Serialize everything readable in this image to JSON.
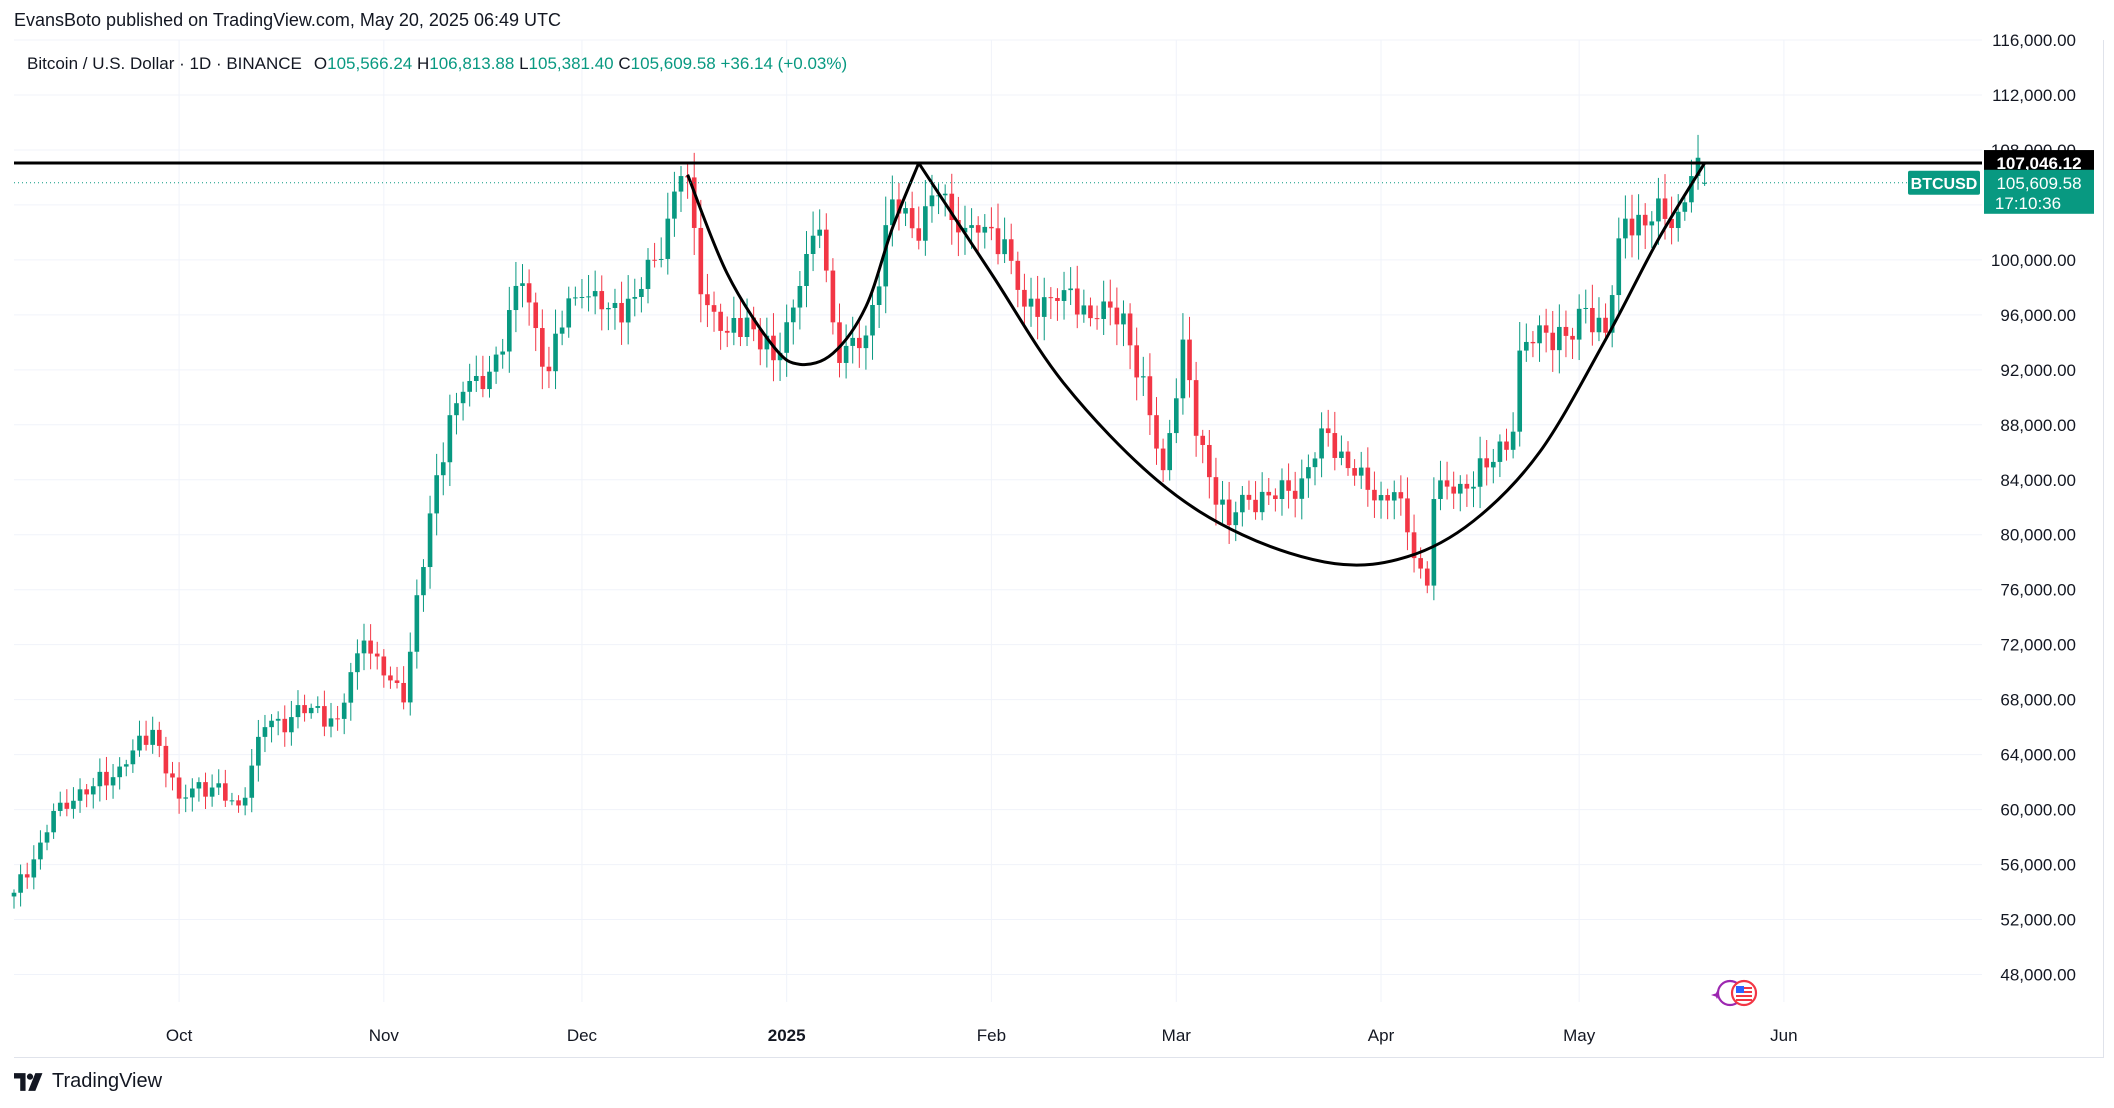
{
  "header": {
    "published_text": "EvansBoto published on TradingView.com, May 20, 2025 06:49 UTC"
  },
  "legend": {
    "symbol": "Bitcoin / U.S. Dollar · 1D · BINANCE",
    "open_label": "O",
    "open": "105,566.24",
    "high_label": "H",
    "high": "106,813.88",
    "low_label": "L",
    "low": "105,381.40",
    "close_label": "C",
    "close": "105,609.58",
    "change": "+36.14 (+0.03%)"
  },
  "footer": {
    "brand": "TradingView"
  },
  "colors": {
    "up": "#089981",
    "down": "#f23645",
    "pattern_line": "#000000",
    "level_line": "#000000",
    "grid": "#f0f3fa",
    "axis_text": "#131722"
  },
  "chart_data": {
    "type": "candlestick",
    "symbol": "BTCUSD",
    "interval": "1D",
    "y_axis": {
      "min": 46000,
      "max": 116000,
      "ticks": [
        48000,
        52000,
        56000,
        60000,
        64000,
        68000,
        72000,
        76000,
        80000,
        84000,
        88000,
        92000,
        96000,
        100000,
        104000,
        108000,
        112000,
        116000
      ],
      "tick_labels": [
        "48,000.00",
        "52,000.00",
        "56,000.00",
        "60,000.00",
        "64,000.00",
        "68,000.00",
        "72,000.00",
        "76,000.00",
        "80,000.00",
        "84,000.00",
        "88,000.00",
        "92,000.00",
        "96,000.00",
        "100,000.00",
        "104,000.00",
        "108,000.00",
        "112,000.00",
        "116,000.00"
      ],
      "side": "right"
    },
    "x_axis": {
      "start_date": "2024-09-06",
      "end_date": "2025-07-01",
      "ticks": [
        {
          "date": "2024-10-01",
          "label": "Oct",
          "bold": false
        },
        {
          "date": "2024-11-01",
          "label": "Nov",
          "bold": false
        },
        {
          "date": "2024-12-01",
          "label": "Dec",
          "bold": false
        },
        {
          "date": "2025-01-01",
          "label": "2025",
          "bold": true
        },
        {
          "date": "2025-02-01",
          "label": "Feb",
          "bold": false
        },
        {
          "date": "2025-03-01",
          "label": "Mar",
          "bold": false
        },
        {
          "date": "2025-04-01",
          "label": "Apr",
          "bold": false
        },
        {
          "date": "2025-05-01",
          "label": "May",
          "bold": false
        },
        {
          "date": "2025-06-01",
          "label": "Jun",
          "bold": false
        }
      ]
    },
    "last_date": "2025-05-20",
    "close_anchors": [
      [
        "2024-09-06",
        53950
      ],
      [
        "2024-09-10",
        57600
      ],
      [
        "2024-09-13",
        60500
      ],
      [
        "2024-09-18",
        61700
      ],
      [
        "2024-09-23",
        63300
      ],
      [
        "2024-09-27",
        65800
      ],
      [
        "2024-10-01",
        60800
      ],
      [
        "2024-10-04",
        62000
      ],
      [
        "2024-10-10",
        60300
      ],
      [
        "2024-10-14",
        66000
      ],
      [
        "2024-10-21",
        67400
      ],
      [
        "2024-10-25",
        66600
      ],
      [
        "2024-10-29",
        72300
      ],
      [
        "2024-11-02",
        69400
      ],
      [
        "2024-11-04",
        67800
      ],
      [
        "2024-11-06",
        75600
      ],
      [
        "2024-11-11",
        88700
      ],
      [
        "2024-11-13",
        90400
      ],
      [
        "2024-11-16",
        90600
      ],
      [
        "2024-11-22",
        98300
      ],
      [
        "2024-11-26",
        91900
      ],
      [
        "2024-11-29",
        97200
      ],
      [
        "2024-12-01",
        97300
      ],
      [
        "2024-12-05",
        96500
      ],
      [
        "2024-12-09",
        97300
      ],
      [
        "2024-12-12",
        100000
      ],
      [
        "2024-12-16",
        106100
      ],
      [
        "2024-12-17",
        106000
      ],
      [
        "2024-12-19",
        97500
      ],
      [
        "2024-12-23",
        94700
      ],
      [
        "2024-12-26",
        95800
      ],
      [
        "2024-12-30",
        92700
      ],
      [
        "2025-01-03",
        98100
      ],
      [
        "2025-01-06",
        102200
      ],
      [
        "2025-01-09",
        92500
      ],
      [
        "2025-01-13",
        94500
      ],
      [
        "2025-01-17",
        104400
      ],
      [
        "2025-01-20",
        102300
      ],
      [
        "2025-01-24",
        104700
      ],
      [
        "2025-01-27",
        102000
      ],
      [
        "2025-01-31",
        102400
      ],
      [
        "2025-02-03",
        101500
      ],
      [
        "2025-02-06",
        96600
      ],
      [
        "2025-02-12",
        97800
      ],
      [
        "2025-02-17",
        95700
      ],
      [
        "2025-02-21",
        96100
      ],
      [
        "2025-02-25",
        88700
      ],
      [
        "2025-02-27",
        84700
      ],
      [
        "2025-03-02",
        94200
      ],
      [
        "2025-03-04",
        87200
      ],
      [
        "2025-03-09",
        80700
      ],
      [
        "2025-03-11",
        82900
      ],
      [
        "2025-03-16",
        82600
      ],
      [
        "2025-03-20",
        84100
      ],
      [
        "2025-03-24",
        87400
      ],
      [
        "2025-03-28",
        84300
      ],
      [
        "2025-03-31",
        82500
      ],
      [
        "2025-04-03",
        83100
      ],
      [
        "2025-04-06",
        78300
      ],
      [
        "2025-04-08",
        76300
      ],
      [
        "2025-04-09",
        82600
      ],
      [
        "2025-04-13",
        83700
      ],
      [
        "2025-04-17",
        84900
      ],
      [
        "2025-04-21",
        87500
      ],
      [
        "2025-04-22",
        93400
      ],
      [
        "2025-04-26",
        94700
      ],
      [
        "2025-04-30",
        94200
      ],
      [
        "2025-05-02",
        96500
      ],
      [
        "2025-05-05",
        94700
      ],
      [
        "2025-05-08",
        103000
      ],
      [
        "2025-05-12",
        102800
      ],
      [
        "2025-05-16",
        103500
      ],
      [
        "2025-05-18",
        106100
      ],
      [
        "2025-05-20",
        105609.58
      ]
    ],
    "last_ohlc": {
      "open": 105566.24,
      "high": 106813.88,
      "low": 105381.4,
      "close": 105609.58
    },
    "resistance": {
      "value": 107046.12,
      "label": "107,046.12"
    },
    "price_tag": {
      "label": "BTCUSD",
      "price": "105,609.58",
      "countdown": "17:10:36"
    },
    "annotation": {
      "type": "cup-and-handle",
      "cups": [
        [
          [
            "2024-12-17",
            106200
          ],
          [
            "2024-12-23",
            99000
          ],
          [
            "2024-12-30",
            93700
          ],
          [
            "2025-01-03",
            92400
          ],
          [
            "2025-01-08",
            93200
          ],
          [
            "2025-01-13",
            96600
          ],
          [
            "2025-01-17",
            102300
          ],
          [
            "2025-01-21",
            107046
          ]
        ],
        [
          [
            "2025-01-21",
            107046
          ],
          [
            "2025-02-01",
            99000
          ],
          [
            "2025-02-12",
            91000
          ],
          [
            "2025-02-26",
            84000
          ],
          [
            "2025-03-11",
            80000
          ],
          [
            "2025-03-25",
            77900
          ],
          [
            "2025-04-05",
            78400
          ],
          [
            "2025-04-15",
            81000
          ],
          [
            "2025-04-25",
            86000
          ],
          [
            "2025-05-05",
            94200
          ],
          [
            "2025-05-13",
            101500
          ],
          [
            "2025-05-20",
            107046
          ]
        ]
      ]
    }
  }
}
